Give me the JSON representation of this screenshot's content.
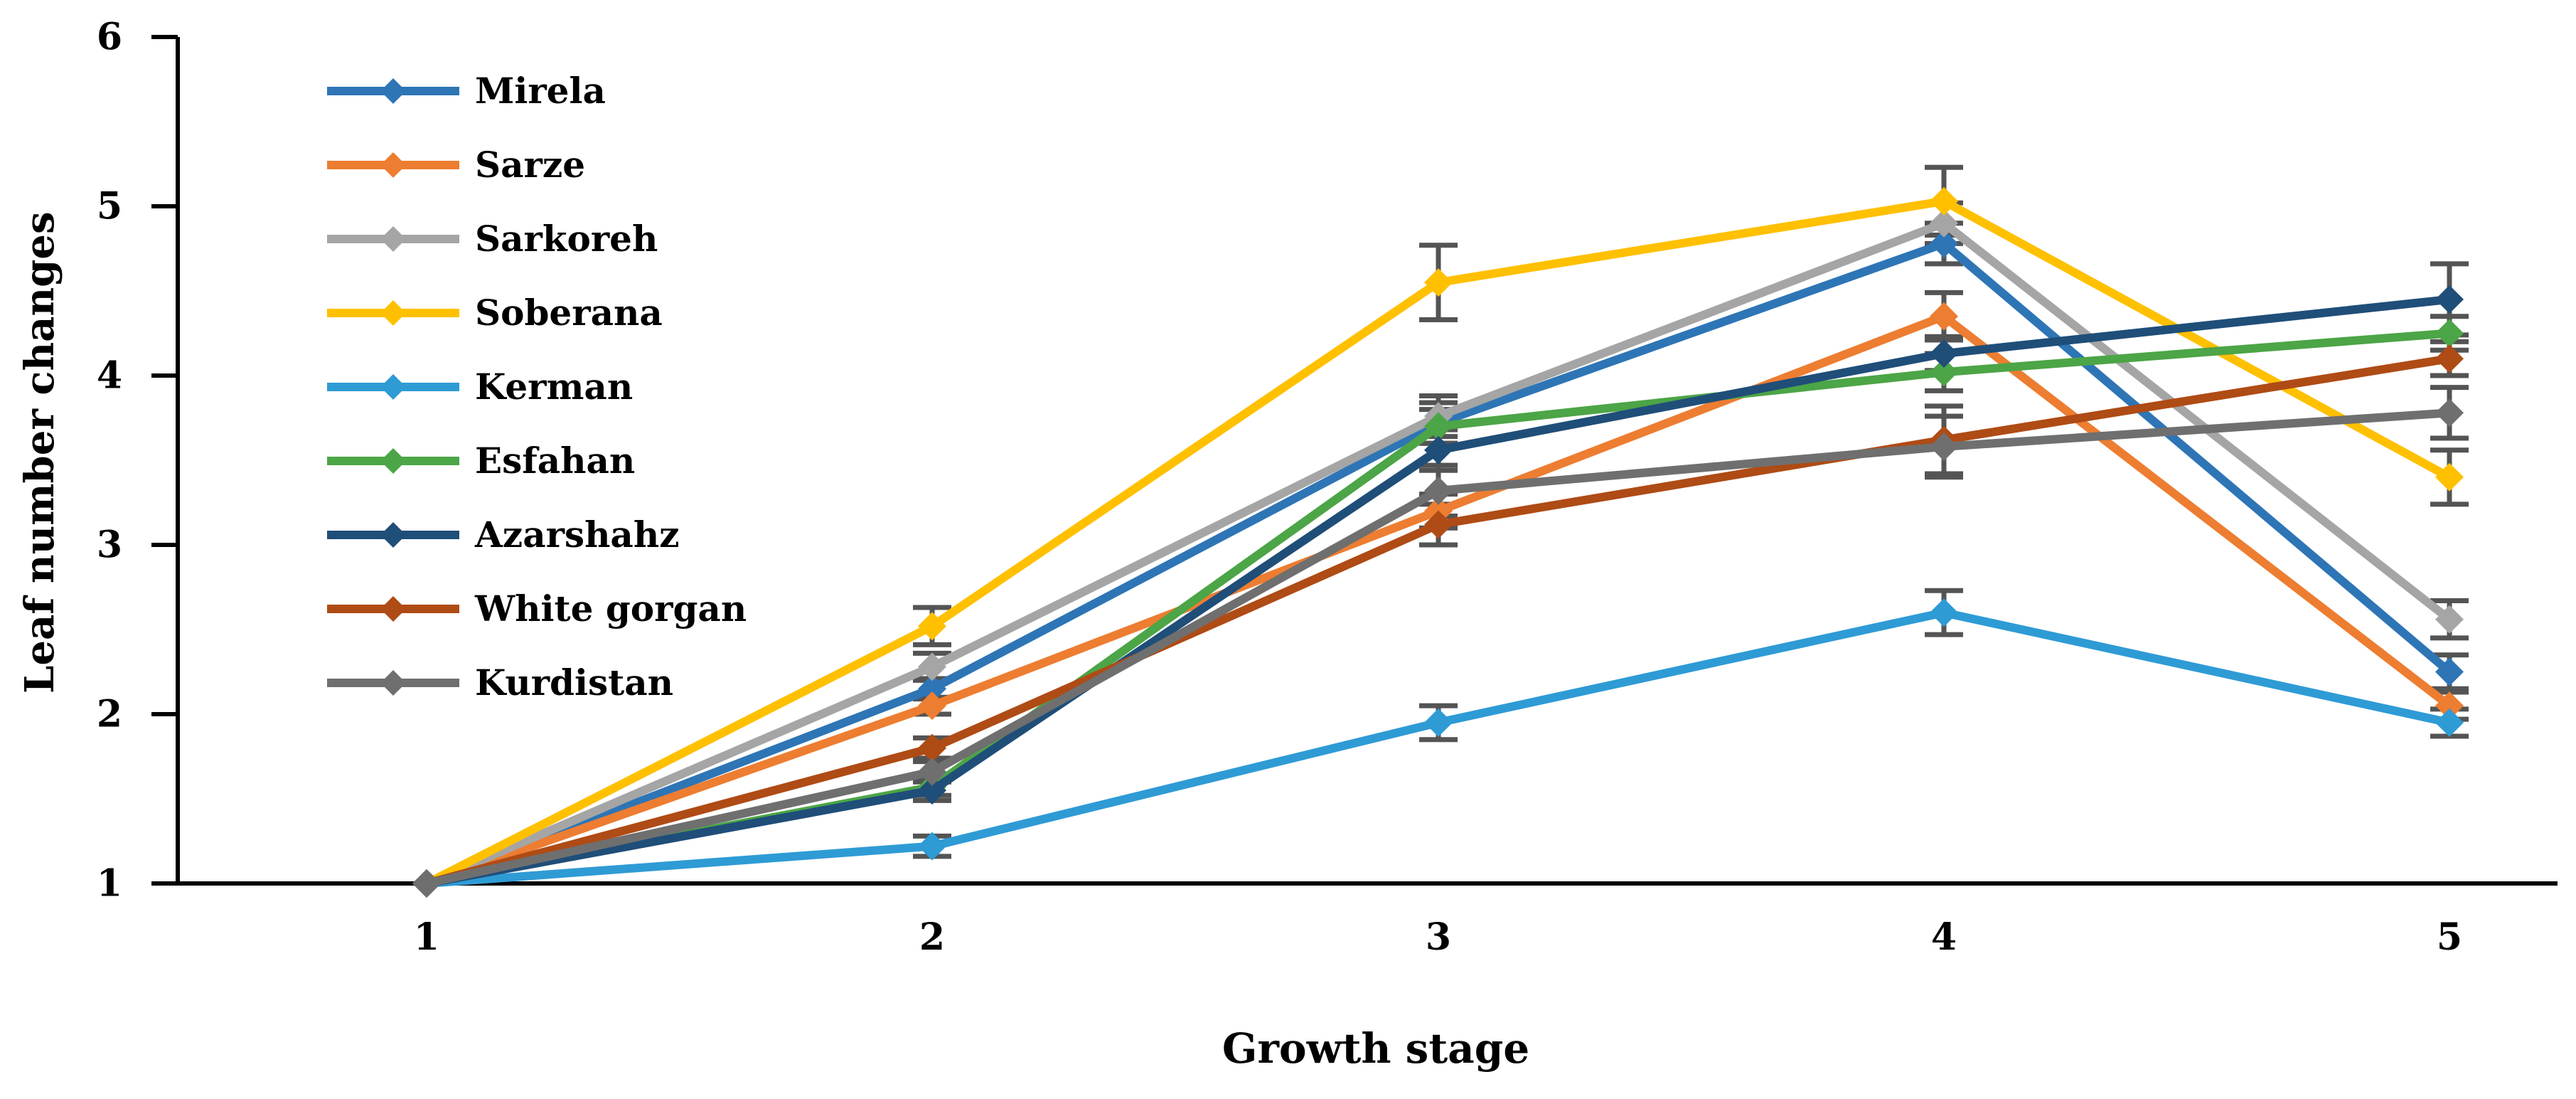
{
  "figure": {
    "description": "Line chart of leaf number changes across growth stages for nine genotypes, with diamond markers and error bars"
  },
  "chart_data": {
    "type": "line",
    "title": "",
    "xlabel": "Growth stage",
    "ylabel": "Leaf number changes",
    "categories": [
      "1",
      "2",
      "3",
      "4",
      "5"
    ],
    "ylim": [
      1,
      6
    ],
    "y_ticks": [
      1,
      2,
      3,
      4,
      5,
      6
    ],
    "grid": false,
    "legend_position": "inside-upper-left",
    "marker": "diamond",
    "axis_color": "#000000",
    "error_bar_color": "#545454",
    "series": [
      {
        "name": "Mirela",
        "color": "#2E75B6",
        "values": [
          1,
          2.15,
          3.72,
          4.78,
          2.25
        ],
        "errors": [
          0,
          0.06,
          0.12,
          0.12,
          0.1
        ]
      },
      {
        "name": "Sarze",
        "color": "#ED7D31",
        "values": [
          1,
          2.05,
          3.2,
          4.35,
          2.05
        ],
        "errors": [
          0,
          0.05,
          0.1,
          0.14,
          0.08
        ]
      },
      {
        "name": "Sarkoreh",
        "color": "#A5A5A5",
        "values": [
          1,
          2.28,
          3.76,
          4.9,
          2.56
        ],
        "errors": [
          0,
          0.08,
          0.12,
          0.12,
          0.11
        ]
      },
      {
        "name": "Soberana",
        "color": "#FFC000",
        "values": [
          1,
          2.52,
          4.55,
          5.03,
          3.4
        ],
        "errors": [
          0,
          0.11,
          0.22,
          0.2,
          0.16
        ]
      },
      {
        "name": "Kerman",
        "color": "#2E9BD5",
        "values": [
          1,
          1.22,
          1.95,
          2.6,
          1.95
        ],
        "errors": [
          0,
          0.06,
          0.1,
          0.13,
          0.08
        ]
      },
      {
        "name": "Esfahan",
        "color": "#4CA546",
        "values": [
          1,
          1.57,
          3.7,
          4.02,
          4.25
        ],
        "errors": [
          0,
          0.05,
          0.1,
          0.11,
          0.1
        ]
      },
      {
        "name": "Azarshahz",
        "color": "#1F4E79",
        "values": [
          1,
          1.55,
          3.56,
          4.13,
          4.45
        ],
        "errors": [
          0,
          0.06,
          0.12,
          0.1,
          0.21
        ]
      },
      {
        "name": "White gorgan",
        "color": "#AF4B15",
        "values": [
          1,
          1.8,
          3.12,
          3.62,
          4.1
        ],
        "errors": [
          0,
          0.06,
          0.12,
          0.2,
          0.1
        ]
      },
      {
        "name": "Kurdistan",
        "color": "#6F6F6F",
        "values": [
          1,
          1.66,
          3.32,
          3.58,
          3.78
        ],
        "errors": [
          0,
          0.06,
          0.15,
          0.18,
          0.15
        ]
      }
    ]
  }
}
